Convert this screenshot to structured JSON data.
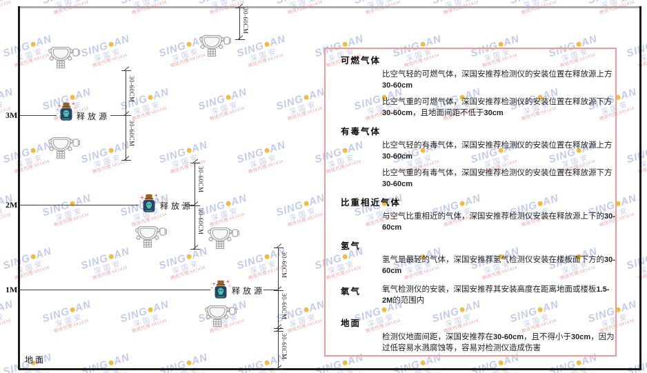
{
  "diagram": {
    "height_markers": [
      {
        "label": "3M"
      },
      {
        "label": "2M"
      },
      {
        "label": "1M"
      }
    ],
    "ground_label": "地面",
    "release_source_label": "释放源",
    "dimension_label": "30-60CM"
  },
  "panel": {
    "sections": [
      {
        "heading": "可燃气体",
        "paragraphs": [
          "比空气轻的可燃气体，深国安推荐检测仪的安装位置在释放源上方30-60cm",
          "比空气重的可燃气体，深国安推荐检测仪的安装位置在释放源下方30-60cm，且地面间距不低于30cm"
        ]
      },
      {
        "heading": "有毒气体",
        "paragraphs": [
          "比空气轻的有毒气体，深国安推荐检测仪的安装位置在释放源上方30-60cm",
          "比空气重的有毒气体，深国安推荐检测仪的安装位置在释放源下方30-60cm"
        ]
      },
      {
        "heading": "比重相近气体",
        "paragraphs": [
          "与空气比重相近的气体，深国安推荐检测仪安装在释放源上下的30-60cm"
        ]
      },
      {
        "heading": "氢气",
        "paragraphs": [
          "氢气是最轻的气体，深国安推荐氢气检测仪安装在楼板面下方的30-60cm"
        ]
      },
      {
        "heading": "氧气",
        "paragraphs": [
          "氧气检测仪的安装，深国安推荐其安装高度在距离地面或楼板1.5-2M的范围内"
        ]
      },
      {
        "heading": "地面",
        "paragraphs": [
          "检测仪地面间距，深国安推荐在30-60cm，且不得小于30cm，因为过低容易水溅腐蚀等，容易对检测仪造成伤害"
        ]
      }
    ]
  },
  "watermark": {
    "brand_left": "SING",
    "brand_right": "AN",
    "company": "深国安",
    "subtext": "微信代理:681434"
  },
  "colors": {
    "panel_border": "#ef9a9a",
    "watermark_blue": "#c2cbea",
    "watermark_dot": "#f2bb40",
    "source_body": "#254664",
    "source_cap": "#b06a28",
    "source_skull": "#52c5b8",
    "line_dark": "#1a1a1a",
    "slab_gray": "#ababab"
  }
}
